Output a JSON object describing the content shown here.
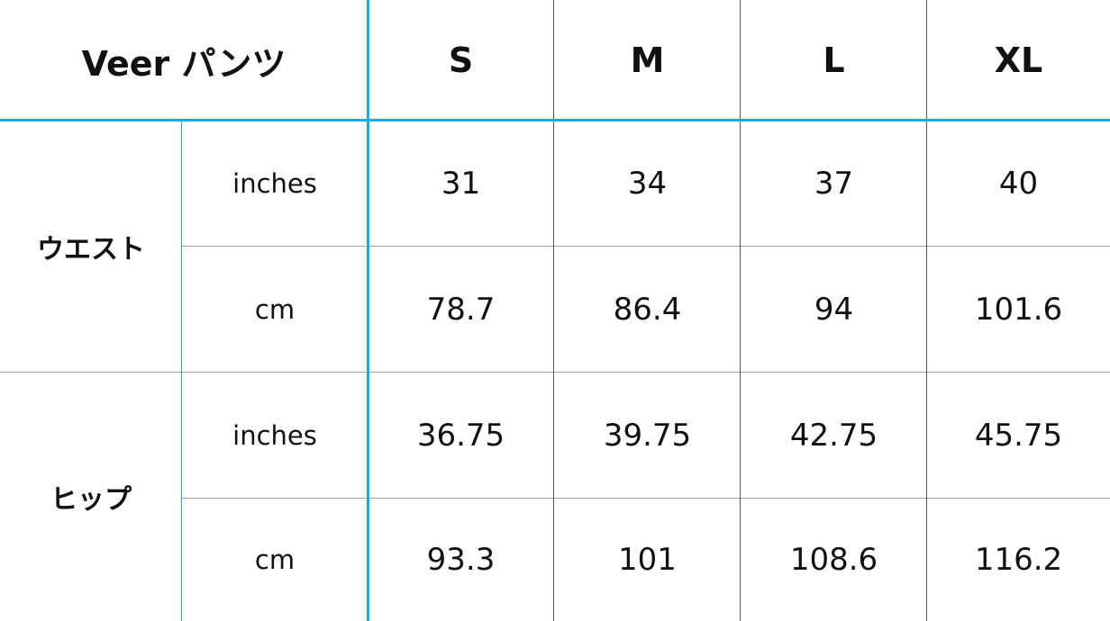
{
  "title": "Veer パンツ",
  "sizes": [
    "S",
    "M",
    "L",
    "XL"
  ],
  "colors": {
    "accent": "#00b0f0",
    "row_line": "#a0a0a0",
    "col_line": "#555555"
  },
  "groups": [
    {
      "label": "ウエスト",
      "rows": [
        {
          "unit": "inches",
          "values": [
            "31",
            "34",
            "37",
            "40"
          ]
        },
        {
          "unit": "cm",
          "values": [
            "78.7",
            "86.4",
            "94",
            "101.6"
          ]
        }
      ]
    },
    {
      "label": "ヒップ",
      "rows": [
        {
          "unit": "inches",
          "values": [
            "36.75",
            "39.75",
            "42.75",
            "45.75"
          ]
        },
        {
          "unit": "cm",
          "values": [
            "93.3",
            "101",
            "108.6",
            "116.2"
          ]
        }
      ]
    }
  ]
}
